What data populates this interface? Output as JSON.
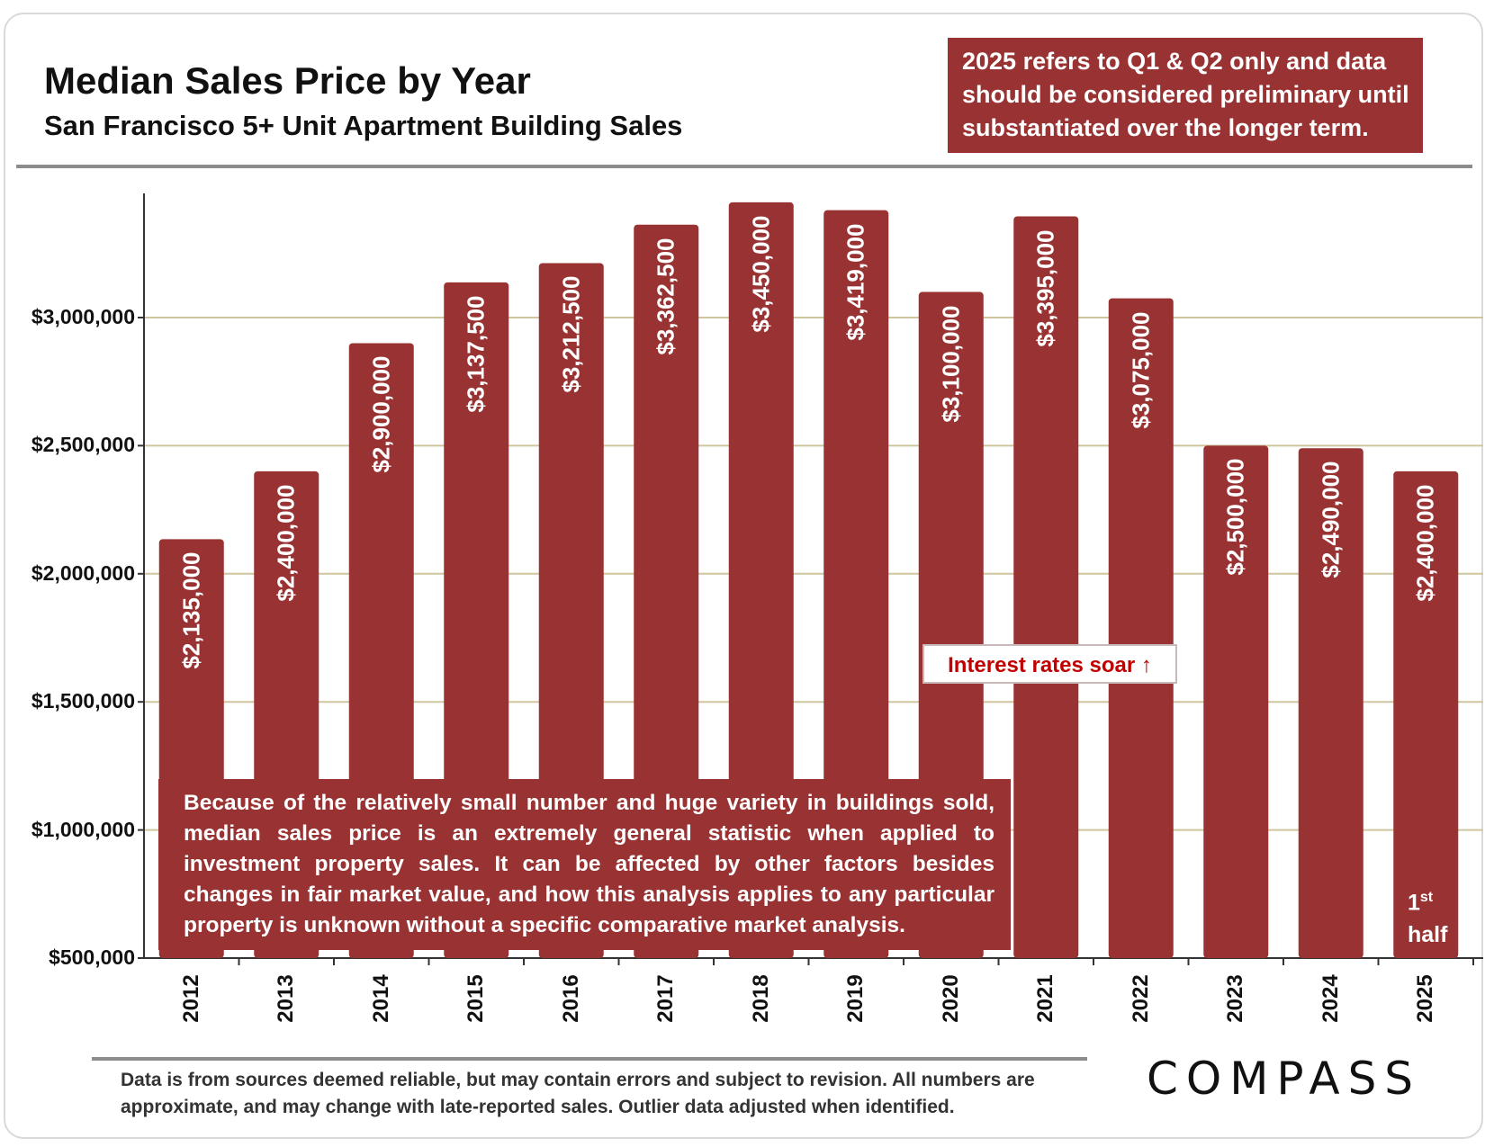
{
  "header": {
    "title": "Median Sales Price by Year",
    "subtitle": "San Francisco 5+ Unit Apartment Building Sales"
  },
  "note_box": "2025 refers to Q1 & Q2 only and data should be considered preliminary until substantiated over the longer term.",
  "annotations": {
    "interest_rates": "Interest rates soar ↑",
    "caveat": "Because of the relatively small number and huge variety in buildings sold, median sales price is an extremely general statistic when applied to investment property sales. It can be affected by other factors besides changes in fair market value, and how this analysis applies to any particular property is unknown without a specific comparative market analysis.",
    "half_first": "1",
    "half_sup": "st",
    "half_second": "half"
  },
  "footer": {
    "disclaimer": "Data is from sources deemed reliable, but may contain errors and subject to revision. All numbers are approximate, and may change with late-reported sales.  Outlier data adjusted when identified.",
    "logo": "COMPASS"
  },
  "colors": {
    "bar": "#993333",
    "gridline": "#cfc6a0",
    "axis": "#333333",
    "accent_text": "#c00000"
  },
  "chart_data": {
    "type": "bar",
    "title": "Median Sales Price by Year",
    "subtitle": "San Francisco 5+ Unit Apartment Building Sales",
    "xlabel": "",
    "ylabel": "",
    "categories": [
      "2012",
      "2013",
      "2014",
      "2015",
      "2016",
      "2017",
      "2018",
      "2019",
      "2020",
      "2021",
      "2022",
      "2023",
      "2024",
      "2025"
    ],
    "values": [
      2135000,
      2400000,
      2900000,
      3137500,
      3212500,
      3362500,
      3450000,
      3419000,
      3100000,
      3395000,
      3075000,
      2500000,
      2490000,
      2400000
    ],
    "value_labels": [
      "$2,135,000",
      "$2,400,000",
      "$2,900,000",
      "$3,137,500",
      "$3,212,500",
      "$3,362,500",
      "$3,450,000",
      "$3,419,000",
      "$3,100,000",
      "$3,395,000",
      "$3,075,000",
      "$2,500,000",
      "$2,490,000",
      "$2,400,000"
    ],
    "ylim": [
      500000,
      3500000
    ],
    "yticks": [
      500000,
      1000000,
      1500000,
      2000000,
      2500000,
      3000000
    ],
    "ytick_labels": [
      "$500,000",
      "$1,000,000",
      "$1,500,000",
      "$2,000,000",
      "$2,500,000",
      "$3,000,000"
    ],
    "grid": true,
    "legend": "none"
  }
}
